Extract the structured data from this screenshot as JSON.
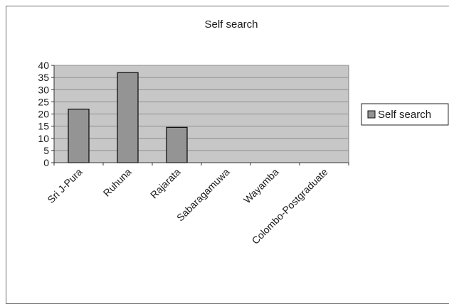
{
  "chart_data": {
    "type": "bar",
    "title": "Self search",
    "xlabel": "",
    "ylabel": "",
    "categories": [
      "Sri J-Pura",
      "Ruhuna",
      "Rajarata",
      "Sabaragamuwa",
      "Wayamba",
      "Colombo-Postgraduate"
    ],
    "series": [
      {
        "name": "Self search",
        "values": [
          22,
          37,
          14.5,
          0,
          0,
          0
        ]
      }
    ],
    "ylim": [
      0,
      40
    ],
    "yticks": [
      "0",
      "5",
      "10",
      "15",
      "20",
      "25",
      "30",
      "35",
      "40"
    ],
    "grid": true,
    "legend_position": "right",
    "colors": {
      "plot_background": "#c7c7c7",
      "bar_fill": "#949494",
      "bar_stroke": "#111111",
      "gridline": "#8e8e8e"
    }
  }
}
